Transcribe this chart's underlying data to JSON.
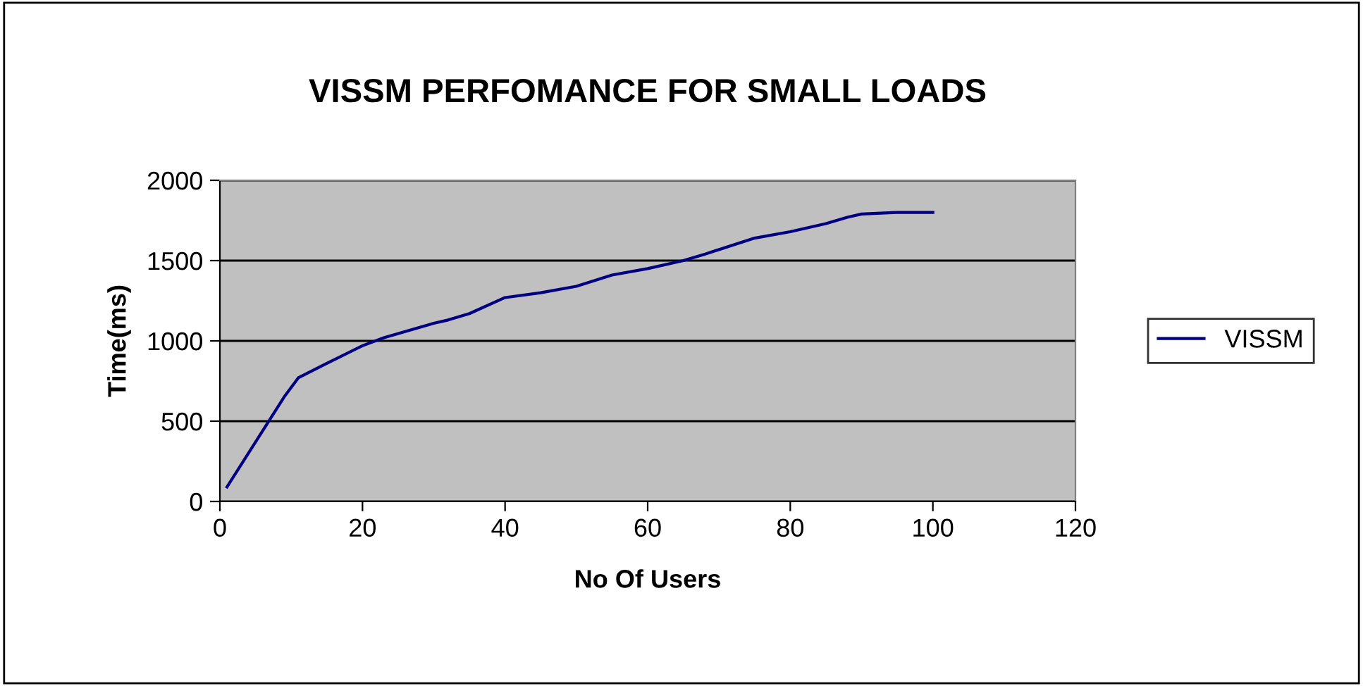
{
  "chart_data": {
    "type": "line",
    "title": "VISSM PERFOMANCE FOR SMALL LOADS",
    "xlabel": "No Of Users",
    "ylabel": "Time(ms)",
    "x": [
      1,
      9,
      11,
      15,
      20,
      23,
      30,
      32,
      35,
      40,
      45,
      50,
      55,
      60,
      65,
      68,
      75,
      80,
      85,
      88,
      90,
      95,
      100
    ],
    "series": [
      {
        "name": "VISSM",
        "color": "#000080",
        "values": [
          90,
          650,
          770,
          860,
          970,
          1020,
          1110,
          1130,
          1170,
          1270,
          1300,
          1340,
          1410,
          1450,
          1500,
          1540,
          1640,
          1680,
          1730,
          1770,
          1790,
          1800,
          1800
        ]
      }
    ],
    "xlim": [
      0,
      120
    ],
    "xticks": [
      0,
      20,
      40,
      60,
      80,
      100,
      120
    ],
    "ylim": [
      0,
      2000
    ],
    "yticks": [
      0,
      500,
      1000,
      1500,
      2000
    ],
    "grid": "y",
    "legend": "right",
    "marker": "none",
    "line_style": "solid"
  }
}
